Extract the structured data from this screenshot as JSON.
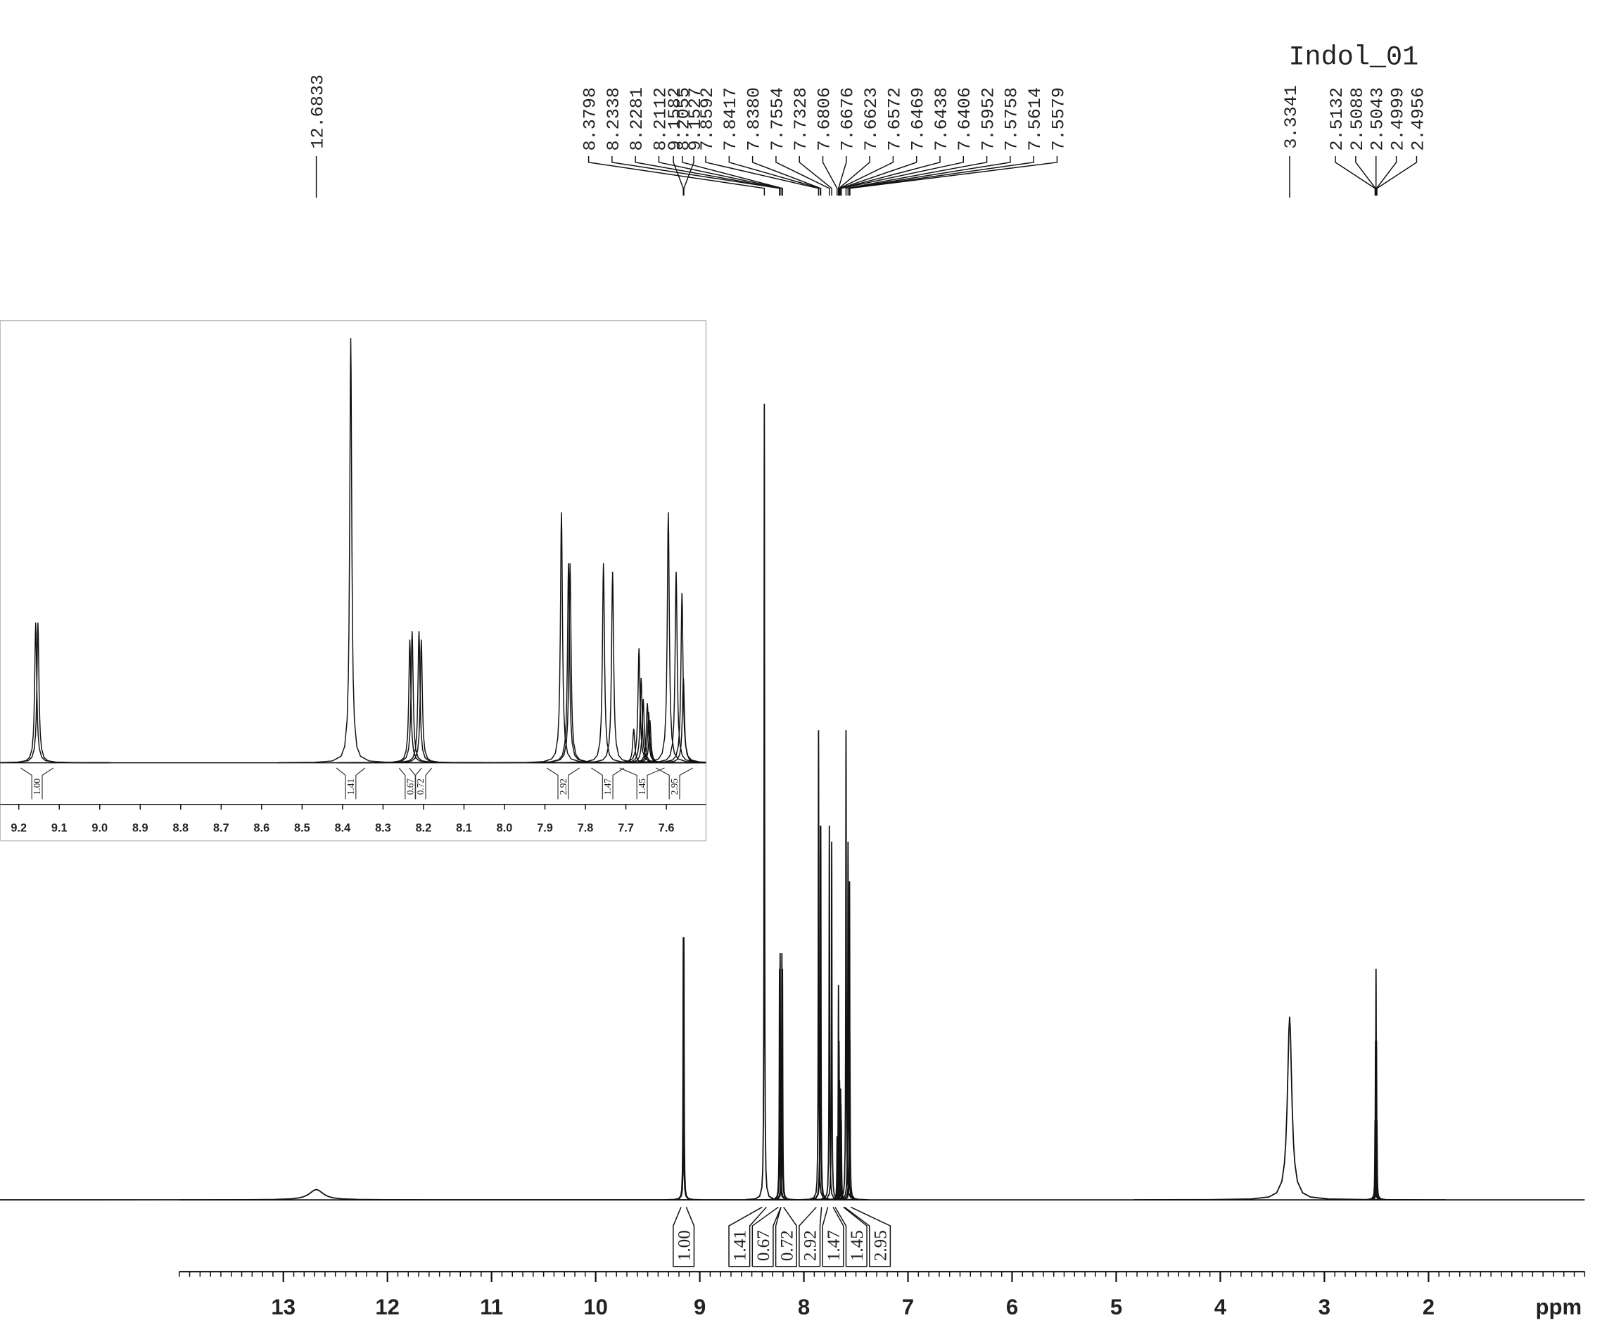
{
  "chart_data": {
    "type": "nmr",
    "title": "Indol_01",
    "x_label": "ppm",
    "xlim": [
      14,
      0.5
    ],
    "xticks": [
      13,
      12,
      11,
      10,
      9,
      8,
      7,
      6,
      5,
      4,
      3,
      2
    ],
    "xminor": 0.1,
    "peak_shifts": [
      12.6833,
      9.1582,
      9.1527,
      8.3798,
      8.2338,
      8.2281,
      8.2112,
      8.2055,
      7.8592,
      7.8417,
      {
        "value": 7.838,
        "label": "7.8380"
      },
      7.7554,
      7.7328,
      7.6806,
      7.6676,
      7.6623,
      7.6572,
      7.6469,
      7.6438,
      7.6406,
      7.5952,
      7.5758,
      7.5614,
      7.5579,
      3.3341,
      2.5132,
      2.5088,
      2.5043,
      2.4999,
      2.4956
    ],
    "peak_heights": [
      1.3,
      33,
      33,
      100,
      29,
      31,
      31,
      29,
      59,
      47,
      47,
      47,
      45,
      8,
      27,
      20,
      15,
      14,
      12,
      10,
      59,
      45,
      40,
      20,
      23,
      10,
      20,
      29,
      20,
      10
    ],
    "peak_widths": [
      0.08,
      0.003,
      0.003,
      0.003,
      0.003,
      0.003,
      0.003,
      0.003,
      0.003,
      0.003,
      0.003,
      0.003,
      0.003,
      0.003,
      0.003,
      0.003,
      0.003,
      0.003,
      0.003,
      0.003,
      0.003,
      0.003,
      0.003,
      0.003,
      0.025,
      0.003,
      0.003,
      0.003,
      0.003,
      0.003
    ],
    "integrals": [
      {
        "value": 1,
        "label": "1.00",
        "range": [
          9.18,
          9.13
        ]
      },
      {
        "value": 1.41,
        "range": [
          8.4,
          8.36
        ]
      },
      {
        "value": 0.67,
        "range": [
          8.245,
          8.22
        ]
      },
      {
        "value": 0.72,
        "range": [
          8.22,
          8.195
        ]
      },
      {
        "value": 2.92,
        "range": [
          7.88,
          7.83
        ]
      },
      {
        "value": 1.47,
        "range": [
          7.77,
          7.72
        ]
      },
      {
        "value": 1.45,
        "range": [
          7.7,
          7.62
        ]
      },
      {
        "value": 2.95,
        "range": [
          7.61,
          7.55
        ]
      }
    ],
    "inset": {
      "xlim": [
        9.246,
        7.502
      ],
      "xticks": [
        9.2,
        9.1,
        {
          "value": 9,
          "label": "9.0"
        },
        8.9,
        8.8,
        8.7,
        8.6,
        8.5,
        8.4,
        8.3,
        8.2,
        8.1,
        {
          "value": 8,
          "label": "8.0"
        },
        7.9,
        7.8,
        7.7,
        7.6
      ]
    }
  }
}
